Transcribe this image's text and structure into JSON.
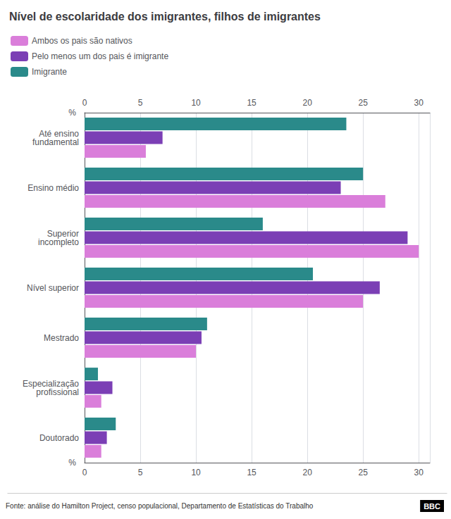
{
  "chart_data": {
    "type": "bar",
    "orientation": "horizontal",
    "title": "Nível de escolaridade dos imigrantes, filhos de imigrantes",
    "xlabel": "%",
    "categories": [
      "Até ensino\nfundamental",
      "Ensino médio",
      "Superior\nincompleto",
      "Nível superior",
      "Mestrado",
      "Especialização\nprofissional",
      "Doutorado"
    ],
    "series": [
      {
        "name": "Imigrante",
        "color": "#2a8a8a",
        "values": [
          23.5,
          25.0,
          16.0,
          20.5,
          11.0,
          1.2,
          2.8
        ]
      },
      {
        "name": "Pelo menos um dos pais é imigrante",
        "color": "#7b3fb5",
        "values": [
          7.0,
          23.0,
          29.0,
          26.5,
          10.5,
          2.5,
          2.0
        ]
      },
      {
        "name": "Ambos os pais são nativos",
        "color": "#da7eda",
        "values": [
          5.5,
          27.0,
          30.0,
          25.0,
          10.0,
          1.5,
          1.5
        ]
      }
    ],
    "xlim": [
      0,
      31
    ],
    "xticks": [
      0,
      5,
      10,
      15,
      20,
      25,
      30
    ],
    "grid": true,
    "legend": "top-left",
    "annotations": [
      "Fonte: análise do Hamilton Project, censo populacional, Departamento de Estatísticas do Trabalho",
      "BBC"
    ]
  }
}
